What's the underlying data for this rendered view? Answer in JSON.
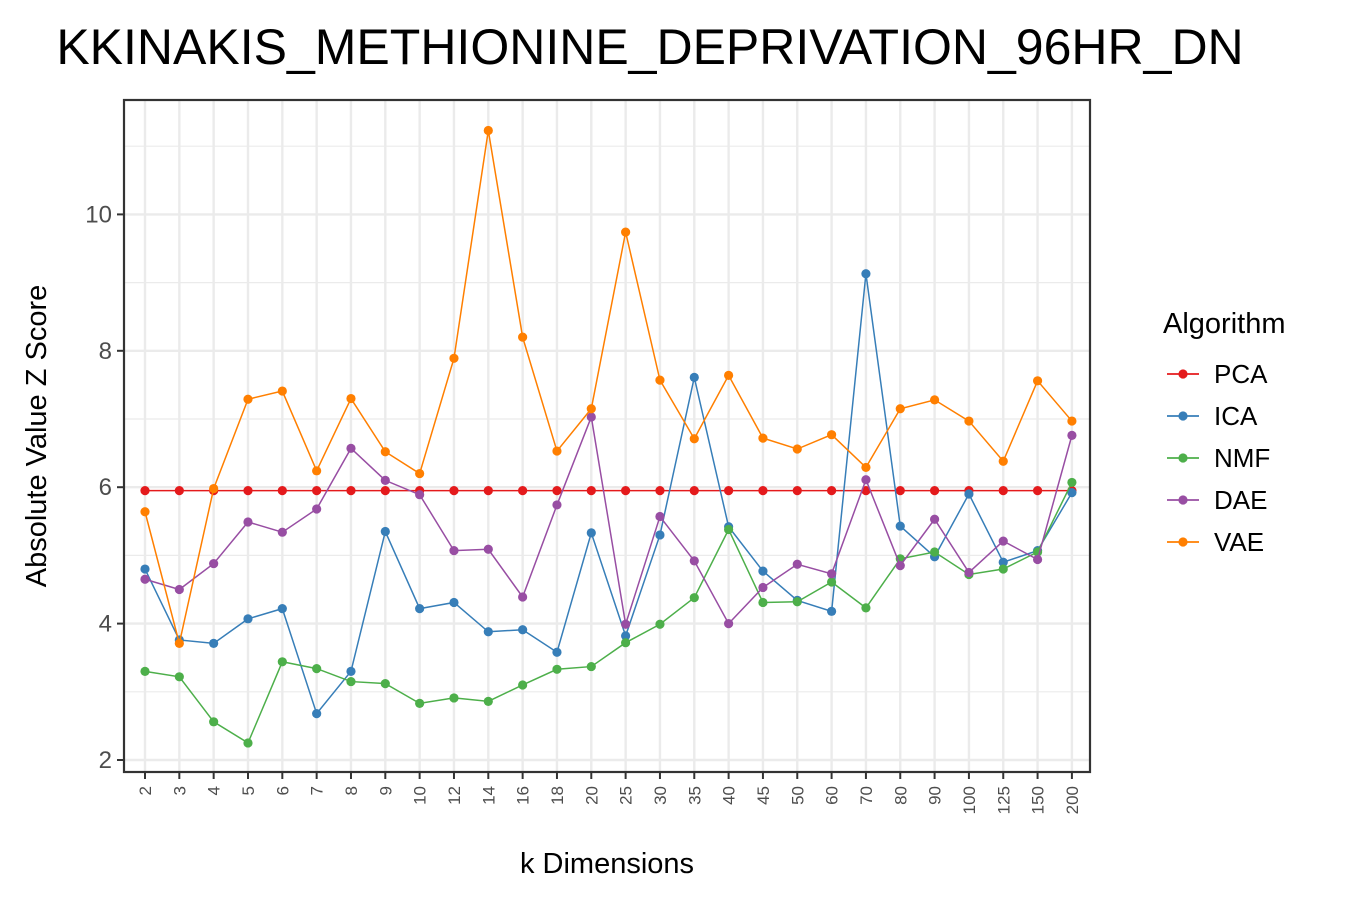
{
  "chart_data": {
    "type": "line",
    "title": "KKINAKIS_METHIONINE_DEPRIVATION_96HR_DN",
    "xlabel": "k Dimensions",
    "ylabel": "Absolute Value Z Score",
    "categories": [
      "2",
      "3",
      "4",
      "5",
      "6",
      "7",
      "8",
      "9",
      "10",
      "12",
      "14",
      "16",
      "18",
      "20",
      "25",
      "30",
      "35",
      "40",
      "45",
      "50",
      "60",
      "70",
      "80",
      "90",
      "100",
      "125",
      "150",
      "200"
    ],
    "yticks": [
      "2",
      "4",
      "6",
      "8",
      "10"
    ],
    "ylim": [
      1.8,
      11.7
    ],
    "grid": true,
    "legend_title": "Algorithm",
    "legend_position": "right",
    "series": [
      {
        "name": "PCA",
        "color": "#e41a1c",
        "values": [
          5.95,
          5.95,
          5.95,
          5.95,
          5.95,
          5.95,
          5.95,
          5.95,
          5.95,
          5.95,
          5.95,
          5.95,
          5.95,
          5.95,
          5.95,
          5.95,
          5.95,
          5.95,
          5.95,
          5.95,
          5.95,
          5.95,
          5.95,
          5.95,
          5.95,
          5.95,
          5.95,
          5.95
        ]
      },
      {
        "name": "ICA",
        "color": "#377eb8",
        "values": [
          4.8,
          3.76,
          3.71,
          4.07,
          4.22,
          2.68,
          3.3,
          5.35,
          4.22,
          4.31,
          3.88,
          3.91,
          3.58,
          5.33,
          3.82,
          5.3,
          7.61,
          5.42,
          4.77,
          4.34,
          4.18,
          9.13,
          5.43,
          4.98,
          5.9,
          4.9,
          5.07,
          5.92
        ]
      },
      {
        "name": "NMF",
        "color": "#4daf4a",
        "values": [
          3.3,
          3.22,
          2.56,
          2.25,
          3.44,
          3.34,
          3.15,
          3.12,
          2.83,
          2.91,
          2.86,
          3.1,
          3.33,
          3.37,
          3.72,
          3.99,
          4.38,
          5.38,
          4.31,
          4.32,
          4.61,
          4.23,
          4.95,
          5.05,
          4.72,
          4.8,
          5.05,
          6.07
        ]
      },
      {
        "name": "DAE",
        "color": "#984ea3",
        "values": [
          4.65,
          4.5,
          4.88,
          5.49,
          5.34,
          5.68,
          6.57,
          6.1,
          5.89,
          5.07,
          5.09,
          4.39,
          5.74,
          7.03,
          3.99,
          5.57,
          4.92,
          4.0,
          4.53,
          4.87,
          4.73,
          6.11,
          4.85,
          5.53,
          4.75,
          5.21,
          4.94,
          6.76
        ]
      },
      {
        "name": "VAE",
        "color": "#ff7f00",
        "values": [
          5.64,
          3.71,
          5.98,
          7.29,
          7.41,
          6.24,
          7.3,
          6.52,
          6.2,
          7.89,
          11.23,
          8.2,
          6.53,
          7.15,
          9.74,
          7.57,
          6.71,
          7.64,
          6.72,
          6.56,
          6.77,
          6.29,
          7.15,
          7.28,
          6.97,
          6.38,
          7.56,
          6.97
        ]
      }
    ]
  }
}
